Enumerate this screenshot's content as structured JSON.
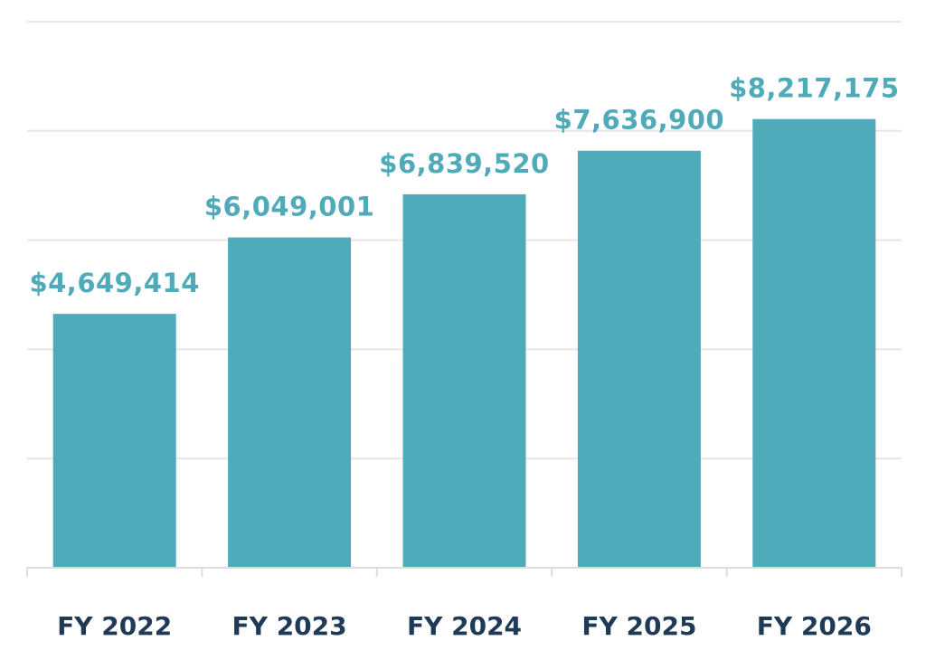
{
  "chart_data": {
    "type": "bar",
    "title": "",
    "xlabel": "",
    "ylabel": "",
    "categories": [
      "FY 2022",
      "FY 2023",
      "FY 2024",
      "FY 2025",
      "FY 2026"
    ],
    "values": [
      4649414,
      6049001,
      6839520,
      7636900,
      8217175
    ],
    "value_labels": [
      "$4,649,414",
      "$6,049,001",
      "$6,839,520",
      "$7,636,900",
      "$8,217,175"
    ],
    "ylim": [
      0,
      10000000
    ],
    "y_gridline_step": 2000000,
    "grid": true,
    "legend": "none",
    "colors": {
      "bar": "#4faaba",
      "value_label": "#4faaba",
      "category_label": "#1f3a57",
      "gridline": "#e6e6e6"
    }
  }
}
